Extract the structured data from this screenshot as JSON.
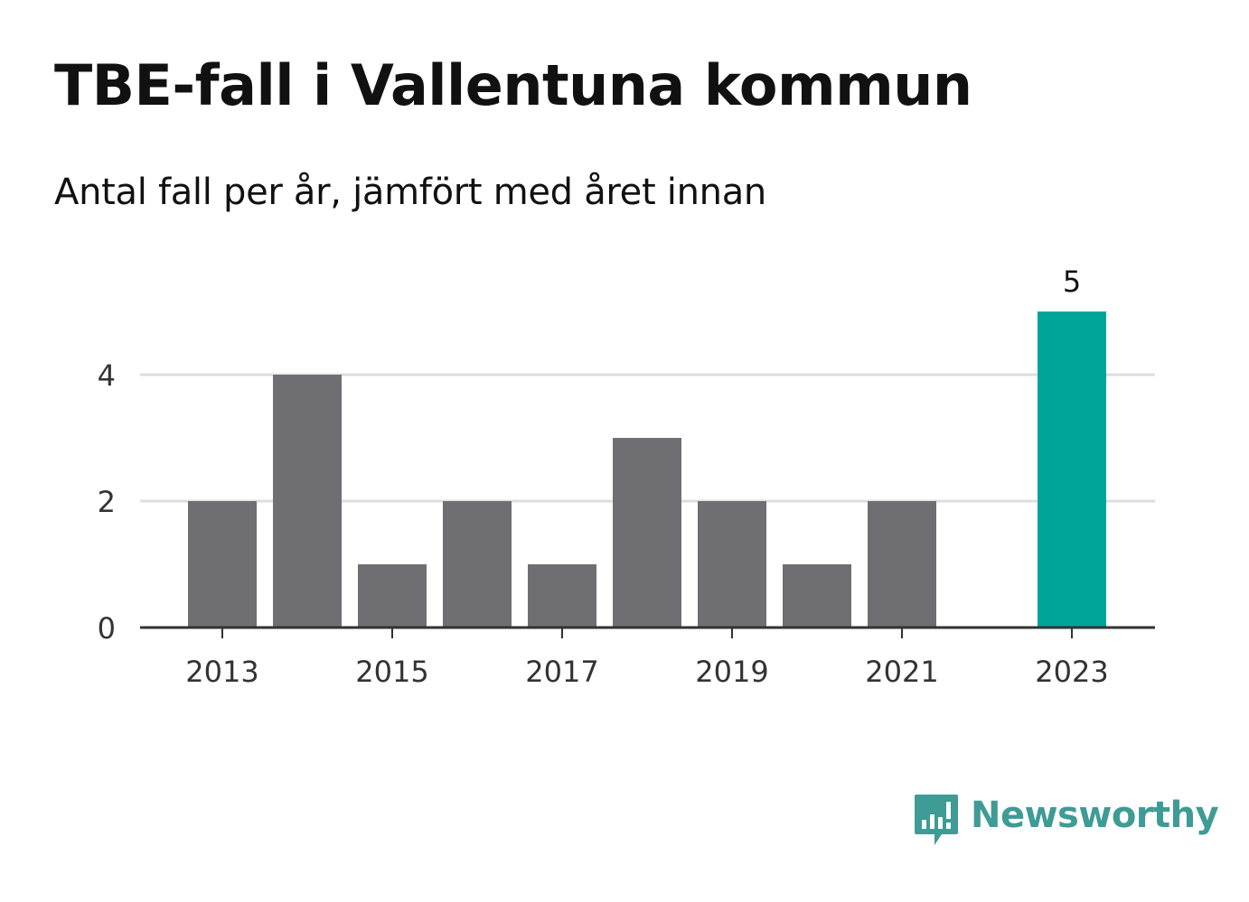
{
  "chart_data": {
    "type": "bar",
    "title": "TBE-fall i Vallentuna kommun",
    "subtitle": "Antal fall per år, jämfört med året innan",
    "categories": [
      "2013",
      "2014",
      "2015",
      "2016",
      "2017",
      "2018",
      "2019",
      "2020",
      "2021",
      "2022",
      "2023"
    ],
    "values": [
      2,
      4,
      1,
      2,
      1,
      3,
      2,
      1,
      2,
      0,
      5
    ],
    "highlight_index": 10,
    "highlight_label": "5",
    "x_tick_labels": [
      "2013",
      "2015",
      "2017",
      "2019",
      "2021",
      "2023"
    ],
    "y_ticks": [
      0,
      2,
      4
    ],
    "ylim": [
      0,
      5.5
    ],
    "grid": true,
    "colors": {
      "bar": "#6f6e73",
      "highlight": "#00a59a",
      "grid": "#dddddd",
      "axis": "#333333"
    }
  },
  "brand": {
    "name": "Newsworthy",
    "color": "#3e9b95",
    "icon": "newsworthy-logo-icon"
  }
}
